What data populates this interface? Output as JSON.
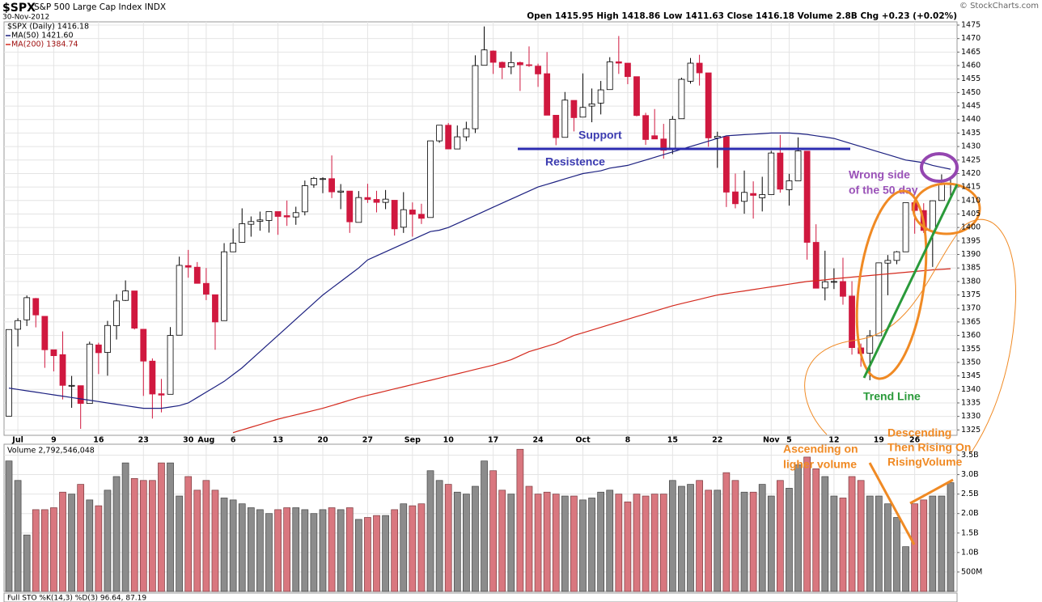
{
  "chart_data": [
    {
      "type": "candlestick",
      "title": "$SPX",
      "subtitle": "S&P 500 Large Cap Index INDX",
      "date": "30-Nov-2012",
      "quote": "Open 1415.95 High 1418.86 Low 1411.63 Close 1416.18 Volume 2.8B Chg +0.23 (+0.02%)",
      "source": "© StockCharts.com",
      "name": "$SPX (Daily) 1416.18",
      "up_color": "#ffffff",
      "down_color": "#d0183f",
      "categories": [
        null,
        "Jul",
        null,
        null,
        null,
        "9",
        null,
        null,
        null,
        null,
        "16",
        null,
        null,
        null,
        null,
        "23",
        null,
        null,
        null,
        null,
        "30",
        null,
        "Aug",
        null,
        null,
        "6",
        null,
        null,
        null,
        null,
        "13",
        null,
        null,
        null,
        null,
        "20",
        null,
        null,
        null,
        null,
        "27",
        null,
        null,
        null,
        null,
        "Sep",
        null,
        null,
        null,
        "10",
        null,
        null,
        null,
        null,
        "17",
        null,
        null,
        null,
        null,
        "24",
        null,
        null,
        null,
        null,
        "Oct",
        null,
        null,
        null,
        null,
        "8",
        null,
        null,
        null,
        null,
        "15",
        null,
        null,
        null,
        null,
        "22",
        null,
        null,
        null,
        null,
        null,
        "Nov",
        null,
        "5",
        null,
        null,
        null,
        null,
        "12",
        null,
        null,
        null,
        null,
        "19",
        null,
        null,
        null,
        "26",
        null,
        null,
        null,
        null
      ],
      "open": [
        1330.1,
        1362.3,
        1365.8,
        1373.7,
        1367.1,
        1354.7,
        1352.9,
        1341.4,
        1341.4,
        1334.8,
        1356.5,
        1353.7,
        1363.6,
        1373.0,
        1376.5,
        1362.3,
        1350.5,
        1338.4,
        1338.2,
        1360.1,
        1385.9,
        1385.3,
        1379.3,
        1375.1,
        1365.5,
        1391.0,
        1394.5,
        1401.2,
        1402.3,
        1402.6,
        1405.9,
        1404.4,
        1403.9,
        1405.8,
        1415.8,
        1417.9,
        1418.1,
        1413.1,
        1413.5,
        1401.9,
        1411.1,
        1410.4,
        1409.3,
        1410.1,
        1400.1,
        1406.5,
        1404.9,
        1403.7,
        1432.1,
        1437.9,
        1429.1,
        1433.6,
        1436.6,
        1460.1,
        1465.4,
        1461.2,
        1459.5,
        1461.1,
        1460.3,
        1459.8,
        1457.0,
        1441.6,
        1433.4,
        1447.1,
        1440.9,
        1444.99,
        1446.1,
        1451.1,
        1461.4,
        1460.9,
        1455.9,
        1441.5,
        1434.0,
        1432.8,
        1428.8,
        1440.3,
        1454.2,
        1460.9,
        1457.3,
        1433.2,
        1433.7,
        1413.2,
        1409.7,
        1412.6,
        1410.99,
        1412.2,
        1427.6,
        1414.0,
        1417.3,
        1428.3,
        1394.5,
        1377.6,
        1379.9,
        1380.0,
        1374.6,
        1355.4,
        1353.4,
        1359.9,
        1386.8,
        1387.8,
        1391.0,
        1409.2,
        1406.3,
        1398.8,
        1410.0,
        1415.95
      ],
      "high": [
        1362.2,
        1366.4,
        1374.8,
        1373.9,
        1367.1,
        1354.7,
        1361.5,
        1345.0,
        1341.4,
        1357.7,
        1357.3,
        1365.4,
        1375.3,
        1380.4,
        1376.5,
        1362.3,
        1351.5,
        1343.9,
        1363.1,
        1389.2,
        1391.7,
        1387.2,
        1385.0,
        1375.1,
        1394.2,
        1399.6,
        1407.1,
        1404.1,
        1405.9,
        1405.9,
        1405.9,
        1410.0,
        1407.7,
        1417.4,
        1418.7,
        1418.6,
        1426.7,
        1416.1,
        1413.5,
        1413.5,
        1416.2,
        1413.6,
        1413.9,
        1410.1,
        1413.1,
        1409.3,
        1408.8,
        1432.1,
        1437.9,
        1438.7,
        1437.8,
        1439.2,
        1463.8,
        1474.5,
        1465.6,
        1461.5,
        1465.2,
        1461.5,
        1467.1,
        1460.7,
        1465.0,
        1441.6,
        1450.2,
        1447.1,
        1457.1,
        1451.5,
        1454.3,
        1463.1,
        1470.96,
        1460.9,
        1455.9,
        1442.5,
        1443.9,
        1438.4,
        1441.3,
        1455.5,
        1462.8,
        1464.0,
        1457.3,
        1435.5,
        1433.7,
        1420.0,
        1421.1,
        1417.1,
        1418.8,
        1428.4,
        1434.3,
        1419.9,
        1433.4,
        1428.3,
        1401.2,
        1391.4,
        1384.9,
        1388.8,
        1380.1,
        1357.0,
        1362.0,
        1386.9,
        1389.8,
        1391.3,
        1409.2,
        1409.2,
        1409.0,
        1410.0,
        1419.7,
        1418.86
      ],
      "low": [
        1330.1,
        1355.9,
        1363.5,
        1363.0,
        1348.0,
        1346.7,
        1336.3,
        1333.2,
        1325.4,
        1334.8,
        1345.7,
        1345.1,
        1358.5,
        1372.8,
        1362.2,
        1337.6,
        1329.2,
        1331.5,
        1338.2,
        1360.1,
        1381.4,
        1379.2,
        1373.1,
        1354.7,
        1365.5,
        1391.0,
        1394.5,
        1396.6,
        1398.8,
        1398.1,
        1397.3,
        1400.6,
        1401.0,
        1404.5,
        1414.7,
        1412.7,
        1410.9,
        1406.8,
        1398.0,
        1401.9,
        1409.1,
        1405.6,
        1406.8,
        1397.0,
        1398.0,
        1396.6,
        1401.3,
        1403.7,
        1431.4,
        1429.0,
        1429.1,
        1432.0,
        1435.0,
        1460.1,
        1456.9,
        1455.0,
        1456.8,
        1450.6,
        1459.5,
        1452.1,
        1441.6,
        1430.5,
        1433.4,
        1435.6,
        1440.9,
        1439.0,
        1441.9,
        1451.1,
        1456.9,
        1453.1,
        1441.2,
        1430.6,
        1432.8,
        1425.5,
        1427.2,
        1440.3,
        1453.3,
        1452.6,
        1429.9,
        1422.1,
        1407.6,
        1407.1,
        1405.1,
        1403.3,
        1405.95,
        1412.2,
        1412.9,
        1408.1,
        1417.3,
        1388.1,
        1377.5,
        1373.0,
        1377.2,
        1371.4,
        1352.9,
        1348.4,
        1343.4,
        1359.9,
        1374.9,
        1386.4,
        1391.0,
        1397.7,
        1398.0,
        1385.4,
        1410.0,
        1411.63
      ],
      "close": [
        1362.2,
        1365.5,
        1374.0,
        1367.6,
        1354.7,
        1352.5,
        1341.5,
        1341.5,
        1334.8,
        1356.8,
        1353.6,
        1363.7,
        1372.8,
        1376.5,
        1362.7,
        1350.5,
        1338.3,
        1337.9,
        1360.0,
        1385.97,
        1385.3,
        1379.3,
        1375.3,
        1365.0,
        1391.0,
        1394.2,
        1401.4,
        1402.2,
        1402.8,
        1405.9,
        1404.1,
        1403.9,
        1405.5,
        1415.5,
        1418.2,
        1418.1,
        1413.2,
        1413.5,
        1402.1,
        1411.1,
        1410.4,
        1409.3,
        1410.5,
        1399.5,
        1406.6,
        1404.9,
        1403.4,
        1432.1,
        1437.9,
        1429.1,
        1433.6,
        1436.6,
        1460.0,
        1465.8,
        1461.2,
        1459.3,
        1461.1,
        1460.3,
        1460.2,
        1456.9,
        1441.6,
        1433.3,
        1447.2,
        1440.7,
        1444.5,
        1445.8,
        1451.0,
        1461.4,
        1460.9,
        1455.9,
        1441.5,
        1432.6,
        1432.8,
        1428.6,
        1440.1,
        1454.9,
        1460.9,
        1457.3,
        1433.2,
        1433.8,
        1413.1,
        1408.8,
        1413.0,
        1411.9,
        1412.2,
        1427.6,
        1414.2,
        1417.3,
        1428.4,
        1394.5,
        1377.5,
        1379.9,
        1380.0,
        1374.5,
        1355.5,
        1353.3,
        1359.9,
        1386.9,
        1387.8,
        1391.0,
        1409.2,
        1406.3,
        1398.9,
        1409.9,
        1415.95,
        1416.18
      ],
      "series": [
        {
          "name": "MA(50) 1421.60",
          "color": "#1c2080",
          "values": [
            1340.5,
            1340,
            1339.5,
            1339,
            1338.5,
            1338,
            1337.5,
            1337,
            1336.5,
            1336,
            1335.5,
            1335,
            1334.5,
            1334,
            1333.5,
            1333,
            1333,
            1333,
            1333.5,
            1334,
            1335,
            1337,
            1339,
            1341,
            1343,
            1345.5,
            1348,
            1351,
            1354,
            1357,
            1360,
            1363,
            1366,
            1369,
            1372,
            1375,
            1377.5,
            1380,
            1382.5,
            1385,
            1388,
            1389.5,
            1391,
            1392.5,
            1394,
            1395.5,
            1397,
            1398.5,
            1399,
            1400,
            1401.5,
            1403,
            1404.5,
            1406,
            1407.5,
            1409,
            1410.5,
            1412,
            1413.5,
            1415,
            1416,
            1417,
            1418,
            1419,
            1420,
            1420.5,
            1421,
            1422,
            1422.5,
            1423,
            1424,
            1425,
            1426,
            1427,
            1428,
            1429,
            1430,
            1431,
            1432,
            1433,
            1434,
            1434.2,
            1434.4,
            1434.6,
            1434.8,
            1435,
            1435,
            1435,
            1434.8,
            1434.5,
            1434,
            1433.5,
            1433,
            1432,
            1431,
            1430,
            1429,
            1428,
            1427,
            1426,
            1425,
            1424.5,
            1424,
            1423,
            1422.3,
            1421.6
          ]
        },
        {
          "name": "MA(200) 1384.74",
          "color": "#d42a1e",
          "values": [
            null,
            null,
            null,
            null,
            null,
            null,
            null,
            null,
            null,
            null,
            null,
            null,
            null,
            null,
            null,
            null,
            null,
            null,
            null,
            null,
            null,
            null,
            null,
            null,
            null,
            1324,
            1325,
            1326,
            1327,
            1328,
            1329,
            1329.8,
            1330.6,
            1331.4,
            1332.2,
            1333,
            1334,
            1335,
            1336,
            1337,
            1337.8,
            1338.6,
            1339.4,
            1340.2,
            1341,
            1341.8,
            1342.6,
            1343.4,
            1344.2,
            1345,
            1345.8,
            1346.6,
            1347.4,
            1348.2,
            1349,
            1350,
            1351,
            1352.5,
            1354,
            1355,
            1356,
            1357,
            1358.5,
            1360,
            1361,
            1362,
            1363,
            1364,
            1365,
            1366,
            1367,
            1368,
            1369,
            1370,
            1371,
            1371.8,
            1372.6,
            1373.4,
            1374.2,
            1375,
            1375.5,
            1376,
            1376.5,
            1377,
            1377.5,
            1378,
            1378.5,
            1379,
            1379.5,
            1380,
            1380.3,
            1380.6,
            1381,
            1381.3,
            1381.6,
            1381.9,
            1382.2,
            1382.5,
            1382.8,
            1383.1,
            1383.4,
            1383.7,
            1384,
            1384.3,
            1384.5,
            1384.74
          ]
        }
      ],
      "ylim": [
        1323,
        1476.2
      ],
      "yticks": [
        1325,
        1330,
        1335,
        1340,
        1345,
        1350,
        1355,
        1360,
        1365,
        1370,
        1375,
        1380,
        1385,
        1390,
        1395,
        1400,
        1405,
        1410,
        1415,
        1420,
        1425,
        1430,
        1435,
        1440,
        1445,
        1450,
        1455,
        1460,
        1465,
        1470,
        1475
      ],
      "grid": true,
      "annotations": [
        "Support",
        "Resistence",
        "Wrong side",
        "of the 50 day",
        "Trend Line"
      ]
    },
    {
      "type": "bar",
      "title": "Volume 2,792,546,048",
      "up_color": "#8c8c8c",
      "down_color": "#d9777f",
      "values": [
        3.35,
        2.85,
        1.45,
        2.1,
        2.1,
        2.15,
        2.55,
        2.5,
        2.75,
        2.35,
        2.2,
        2.6,
        2.95,
        3.3,
        2.9,
        2.85,
        2.85,
        3.3,
        3.3,
        2.45,
        2.95,
        2.6,
        2.85,
        2.6,
        2.4,
        2.35,
        2.25,
        2.15,
        2.1,
        2.0,
        2.1,
        2.15,
        2.15,
        2.1,
        2.0,
        2.1,
        2.15,
        2.1,
        2.15,
        1.85,
        1.9,
        1.95,
        1.95,
        2.1,
        2.25,
        2.2,
        2.25,
        3.1,
        2.85,
        2.75,
        2.55,
        2.5,
        2.7,
        3.35,
        3.1,
        2.6,
        2.5,
        3.65,
        2.7,
        2.5,
        2.55,
        2.5,
        2.45,
        2.45,
        2.35,
        2.4,
        2.55,
        2.6,
        2.5,
        2.3,
        2.5,
        2.45,
        2.5,
        2.5,
        2.85,
        2.7,
        2.75,
        2.85,
        2.6,
        2.6,
        3.05,
        2.85,
        2.55,
        2.55,
        2.75,
        2.45,
        2.85,
        2.65,
        3.25,
        3.45,
        3.15,
        2.95,
        2.45,
        2.4,
        2.95,
        2.85,
        2.45,
        2.45,
        2.25,
        1.9,
        1.15,
        2.25,
        2.35,
        2.45,
        2.45,
        2.792546048
      ],
      "ylim": [
        0,
        3.78
      ],
      "yticks": [
        {
          "value": 0.5,
          "label": "500M"
        },
        {
          "value": 1,
          "label": "1.0B"
        },
        {
          "value": 1.5,
          "label": "1.5B"
        },
        {
          "value": 2,
          "label": "2.0B"
        },
        {
          "value": 2.5,
          "label": "2.5B"
        },
        {
          "value": 3,
          "label": "3.0B"
        },
        {
          "value": 3.5,
          "label": "3.5B"
        }
      ],
      "grid": true,
      "annotations": [
        "Ascending on",
        "ligher volume",
        "Descending",
        "Then Rising On",
        "RisingVolume"
      ],
      "footer": "Full STO %K(14,3) %D(3) 96.64, 87.19"
    }
  ]
}
